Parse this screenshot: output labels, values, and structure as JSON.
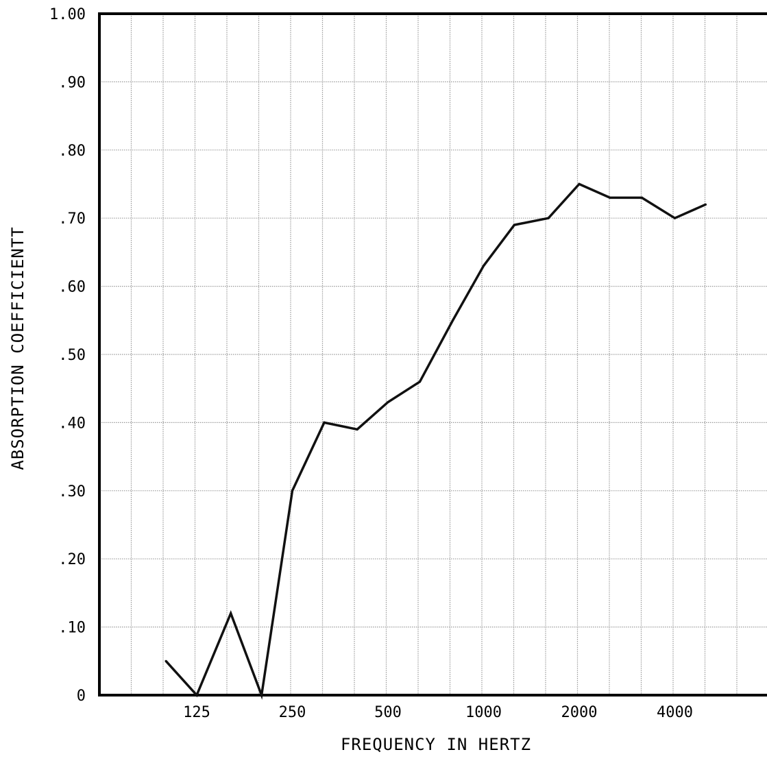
{
  "chart_data": {
    "type": "line",
    "title": "",
    "xlabel": "FREQUENCY IN HERTZ",
    "ylabel": "ABSORPTION COEFFICIENTT",
    "x_scale": "log",
    "x_ticks": [
      "125",
      "250",
      "500",
      "1000",
      "2000",
      "4000"
    ],
    "y_ticks": [
      "0",
      ".10",
      ".20",
      ".30",
      ".40",
      ".50",
      ".60",
      ".70",
      ".80",
      ".90",
      "1.00"
    ],
    "ylim": [
      0,
      1.0
    ],
    "xlim": [
      62.5,
      8000
    ],
    "grid": "on (third-octave vertical lines, 0.10 horizontal lines)",
    "series": [
      {
        "x": [
          100,
          125,
          160,
          200,
          250,
          315,
          400,
          500,
          630,
          800,
          1000,
          1250,
          1600,
          2000,
          2500,
          3150,
          4000,
          5000
        ],
        "values": [
          0.05,
          0.0,
          0.12,
          0.0,
          0.3,
          0.4,
          0.39,
          0.43,
          0.46,
          0.55,
          0.63,
          0.69,
          0.7,
          0.75,
          0.73,
          0.73,
          0.7,
          0.72
        ]
      }
    ]
  }
}
